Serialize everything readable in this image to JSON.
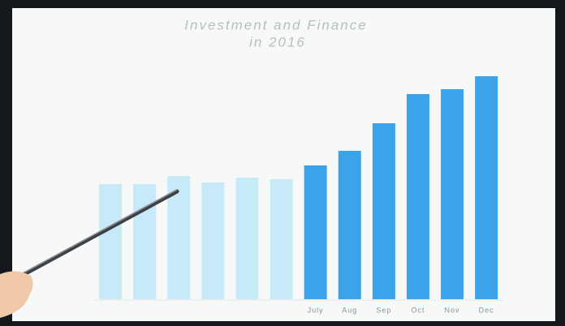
{
  "chart_data": {
    "type": "bar",
    "title": "Investment and Finance",
    "subtitle": "in 2016",
    "categories": [
      null,
      null,
      null,
      null,
      null,
      null,
      "July",
      "Aug",
      "Sep",
      "Oct",
      "Nov",
      "Dec"
    ],
    "values": [
      142,
      142,
      152,
      144,
      150,
      148,
      165,
      183,
      217,
      253,
      259,
      275
    ],
    "colors": [
      "#c6eaf8",
      "#c6eaf8",
      "#c6eaf8",
      "#c6eaf8",
      "#c6eaf8",
      "#c6eaf8",
      "#3aa3ea",
      "#3aa3ea",
      "#3aa3ea",
      "#3aa3ea",
      "#3aa3ea",
      "#3aa3ea"
    ],
    "ylim": [
      0,
      300
    ]
  }
}
